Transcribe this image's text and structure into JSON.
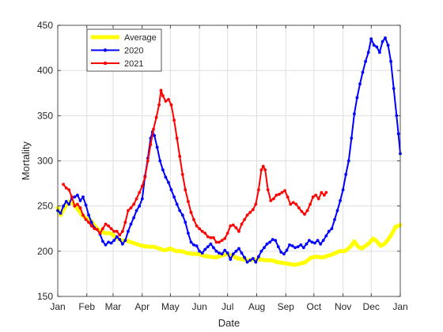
{
  "chart_data": {
    "type": "line",
    "title": "",
    "xlabel": "Date",
    "ylabel": "Mortality",
    "xlim": [
      0,
      365
    ],
    "ylim": [
      150,
      450
    ],
    "grid": true,
    "legend_position": "top-left",
    "x_ticks": [
      {
        "day": 0,
        "label": "Jan"
      },
      {
        "day": 31,
        "label": "Feb"
      },
      {
        "day": 59,
        "label": "Mar"
      },
      {
        "day": 90,
        "label": "Apr"
      },
      {
        "day": 120,
        "label": "May"
      },
      {
        "day": 151,
        "label": "Jun"
      },
      {
        "day": 181,
        "label": "Jul"
      },
      {
        "day": 212,
        "label": "Aug"
      },
      {
        "day": 243,
        "label": "Sep"
      },
      {
        "day": 273,
        "label": "Oct"
      },
      {
        "day": 304,
        "label": "Nov"
      },
      {
        "day": 334,
        "label": "Dec"
      },
      {
        "day": 365,
        "label": "Jan"
      }
    ],
    "y_ticks": [
      150,
      200,
      250,
      300,
      350,
      400,
      450
    ],
    "series": [
      {
        "name": "Average",
        "color": "#ffff00",
        "width": 5,
        "marker": false,
        "points": [
          [
            0,
            248
          ],
          [
            3,
            240
          ],
          [
            7,
            248
          ],
          [
            12,
            255
          ],
          [
            17,
            252
          ],
          [
            21,
            247
          ],
          [
            26,
            240
          ],
          [
            31,
            236
          ],
          [
            36,
            233
          ],
          [
            41,
            226
          ],
          [
            46,
            222
          ],
          [
            51,
            220
          ],
          [
            56,
            220
          ],
          [
            60,
            217
          ],
          [
            64,
            214
          ],
          [
            68,
            212
          ],
          [
            73,
            212
          ],
          [
            78,
            210
          ],
          [
            84,
            208
          ],
          [
            90,
            206
          ],
          [
            96,
            205
          ],
          [
            102,
            205
          ],
          [
            108,
            203
          ],
          [
            114,
            201
          ],
          [
            120,
            203
          ],
          [
            126,
            200
          ],
          [
            132,
            200
          ],
          [
            138,
            198
          ],
          [
            144,
            197
          ],
          [
            150,
            197
          ],
          [
            156,
            195
          ],
          [
            162,
            194
          ],
          [
            168,
            193
          ],
          [
            174,
            195
          ],
          [
            180,
            197
          ],
          [
            186,
            195
          ],
          [
            192,
            192
          ],
          [
            198,
            191
          ],
          [
            204,
            190
          ],
          [
            210,
            191
          ],
          [
            216,
            191
          ],
          [
            222,
            190
          ],
          [
            228,
            190
          ],
          [
            234,
            188
          ],
          [
            240,
            187
          ],
          [
            246,
            186
          ],
          [
            252,
            185
          ],
          [
            258,
            186
          ],
          [
            264,
            188
          ],
          [
            270,
            193
          ],
          [
            276,
            194
          ],
          [
            282,
            193
          ],
          [
            288,
            195
          ],
          [
            294,
            197
          ],
          [
            300,
            200
          ],
          [
            306,
            200
          ],
          [
            312,
            205
          ],
          [
            316,
            211
          ],
          [
            320,
            205
          ],
          [
            324,
            203
          ],
          [
            328,
            206
          ],
          [
            332,
            209
          ],
          [
            336,
            214
          ],
          [
            340,
            211
          ],
          [
            344,
            206
          ],
          [
            348,
            208
          ],
          [
            352,
            213
          ],
          [
            356,
            219
          ],
          [
            360,
            227
          ],
          [
            365,
            229
          ]
        ]
      },
      {
        "name": "2020",
        "color": "#0000ff",
        "width": 2,
        "marker": true,
        "points": [
          [
            0,
            245
          ],
          [
            3,
            242
          ],
          [
            6,
            250
          ],
          [
            9,
            255
          ],
          [
            12,
            252
          ],
          [
            15,
            259
          ],
          [
            18,
            260
          ],
          [
            21,
            262
          ],
          [
            24,
            256
          ],
          [
            27,
            260
          ],
          [
            30,
            251
          ],
          [
            33,
            240
          ],
          [
            36,
            232
          ],
          [
            39,
            226
          ],
          [
            42,
            224
          ],
          [
            45,
            219
          ],
          [
            48,
            211
          ],
          [
            51,
            207
          ],
          [
            54,
            210
          ],
          [
            57,
            209
          ],
          [
            60,
            212
          ],
          [
            63,
            216
          ],
          [
            66,
            213
          ],
          [
            69,
            208
          ],
          [
            72,
            212
          ],
          [
            75,
            222
          ],
          [
            78,
            230
          ],
          [
            81,
            237
          ],
          [
            84,
            245
          ],
          [
            87,
            250
          ],
          [
            90,
            258
          ],
          [
            93,
            283
          ],
          [
            96,
            303
          ],
          [
            99,
            325
          ],
          [
            101,
            332
          ],
          [
            103,
            328
          ],
          [
            106,
            315
          ],
          [
            109,
            300
          ],
          [
            112,
            290
          ],
          [
            115,
            282
          ],
          [
            118,
            276
          ],
          [
            121,
            268
          ],
          [
            124,
            260
          ],
          [
            127,
            252
          ],
          [
            130,
            245
          ],
          [
            133,
            240
          ],
          [
            136,
            232
          ],
          [
            139,
            220
          ],
          [
            142,
            210
          ],
          [
            145,
            207
          ],
          [
            148,
            206
          ],
          [
            151,
            200
          ],
          [
            154,
            198
          ],
          [
            157,
            202
          ],
          [
            160,
            205
          ],
          [
            163,
            208
          ],
          [
            166,
            204
          ],
          [
            169,
            200
          ],
          [
            172,
            198
          ],
          [
            175,
            197
          ],
          [
            178,
            201
          ],
          [
            181,
            198
          ],
          [
            184,
            191
          ],
          [
            187,
            197
          ],
          [
            190,
            200
          ],
          [
            193,
            203
          ],
          [
            196,
            198
          ],
          [
            199,
            193
          ],
          [
            202,
            188
          ],
          [
            205,
            190
          ],
          [
            208,
            192
          ],
          [
            211,
            188
          ],
          [
            214,
            194
          ],
          [
            217,
            200
          ],
          [
            220,
            204
          ],
          [
            223,
            208
          ],
          [
            226,
            210
          ],
          [
            229,
            213
          ],
          [
            232,
            212
          ],
          [
            235,
            205
          ],
          [
            238,
            199
          ],
          [
            241,
            197
          ],
          [
            244,
            201
          ],
          [
            247,
            207
          ],
          [
            250,
            206
          ],
          [
            253,
            204
          ],
          [
            256,
            205
          ],
          [
            259,
            207
          ],
          [
            262,
            204
          ],
          [
            265,
            208
          ],
          [
            268,
            212
          ],
          [
            271,
            210
          ],
          [
            274,
            209
          ],
          [
            277,
            212
          ],
          [
            280,
            208
          ],
          [
            283,
            212
          ],
          [
            286,
            217
          ],
          [
            289,
            222
          ],
          [
            292,
            225
          ],
          [
            295,
            235
          ],
          [
            298,
            245
          ],
          [
            301,
            256
          ],
          [
            304,
            268
          ],
          [
            307,
            285
          ],
          [
            310,
            300
          ],
          [
            313,
            325
          ],
          [
            316,
            352
          ],
          [
            319,
            370
          ],
          [
            322,
            385
          ],
          [
            325,
            398
          ],
          [
            328,
            410
          ],
          [
            331,
            420
          ],
          [
            334,
            435
          ],
          [
            337,
            428
          ],
          [
            340,
            426
          ],
          [
            343,
            420
          ],
          [
            346,
            432
          ],
          [
            349,
            436
          ],
          [
            352,
            428
          ],
          [
            355,
            410
          ],
          [
            358,
            380
          ],
          [
            361,
            350
          ],
          [
            363,
            330
          ],
          [
            365,
            308
          ]
        ]
      },
      {
        "name": "2021",
        "color": "#ff0000",
        "width": 2,
        "marker": true,
        "points": [
          [
            6,
            274
          ],
          [
            9,
            270
          ],
          [
            12,
            268
          ],
          [
            15,
            260
          ],
          [
            18,
            250
          ],
          [
            21,
            252
          ],
          [
            24,
            248
          ],
          [
            27,
            240
          ],
          [
            30,
            235
          ],
          [
            33,
            232
          ],
          [
            36,
            228
          ],
          [
            39,
            225
          ],
          [
            42,
            224
          ],
          [
            45,
            220
          ],
          [
            48,
            225
          ],
          [
            51,
            230
          ],
          [
            54,
            228
          ],
          [
            57,
            225
          ],
          [
            60,
            222
          ],
          [
            63,
            222
          ],
          [
            66,
            218
          ],
          [
            69,
            222
          ],
          [
            72,
            232
          ],
          [
            75,
            245
          ],
          [
            78,
            248
          ],
          [
            81,
            252
          ],
          [
            84,
            258
          ],
          [
            87,
            265
          ],
          [
            90,
            272
          ],
          [
            93,
            282
          ],
          [
            96,
            300
          ],
          [
            99,
            318
          ],
          [
            102,
            335
          ],
          [
            105,
            348
          ],
          [
            108,
            362
          ],
          [
            110,
            378
          ],
          [
            112,
            372
          ],
          [
            115,
            366
          ],
          [
            118,
            368
          ],
          [
            121,
            362
          ],
          [
            124,
            345
          ],
          [
            127,
            325
          ],
          [
            130,
            305
          ],
          [
            133,
            285
          ],
          [
            136,
            268
          ],
          [
            139,
            255
          ],
          [
            142,
            243
          ],
          [
            145,
            235
          ],
          [
            148,
            228
          ],
          [
            151,
            225
          ],
          [
            154,
            222
          ],
          [
            157,
            220
          ],
          [
            160,
            216
          ],
          [
            163,
            215
          ],
          [
            166,
            215
          ],
          [
            169,
            210
          ],
          [
            172,
            210
          ],
          [
            175,
            212
          ],
          [
            178,
            214
          ],
          [
            181,
            220
          ],
          [
            184,
            228
          ],
          [
            187,
            229
          ],
          [
            190,
            226
          ],
          [
            193,
            222
          ],
          [
            196,
            230
          ],
          [
            199,
            235
          ],
          [
            202,
            240
          ],
          [
            205,
            243
          ],
          [
            208,
            246
          ],
          [
            211,
            252
          ],
          [
            214,
            268
          ],
          [
            217,
            290
          ],
          [
            219,
            294
          ],
          [
            221,
            290
          ],
          [
            224,
            268
          ],
          [
            227,
            256
          ],
          [
            230,
            258
          ],
          [
            233,
            262
          ],
          [
            236,
            263
          ],
          [
            239,
            265
          ],
          [
            242,
            267
          ],
          [
            245,
            260
          ],
          [
            248,
            252
          ],
          [
            251,
            254
          ],
          [
            254,
            252
          ],
          [
            257,
            248
          ],
          [
            260,
            244
          ],
          [
            263,
            241
          ],
          [
            266,
            245
          ],
          [
            269,
            252
          ],
          [
            272,
            260
          ],
          [
            275,
            262
          ],
          [
            278,
            258
          ],
          [
            281,
            265
          ],
          [
            284,
            262
          ],
          [
            286,
            265
          ]
        ]
      }
    ]
  }
}
